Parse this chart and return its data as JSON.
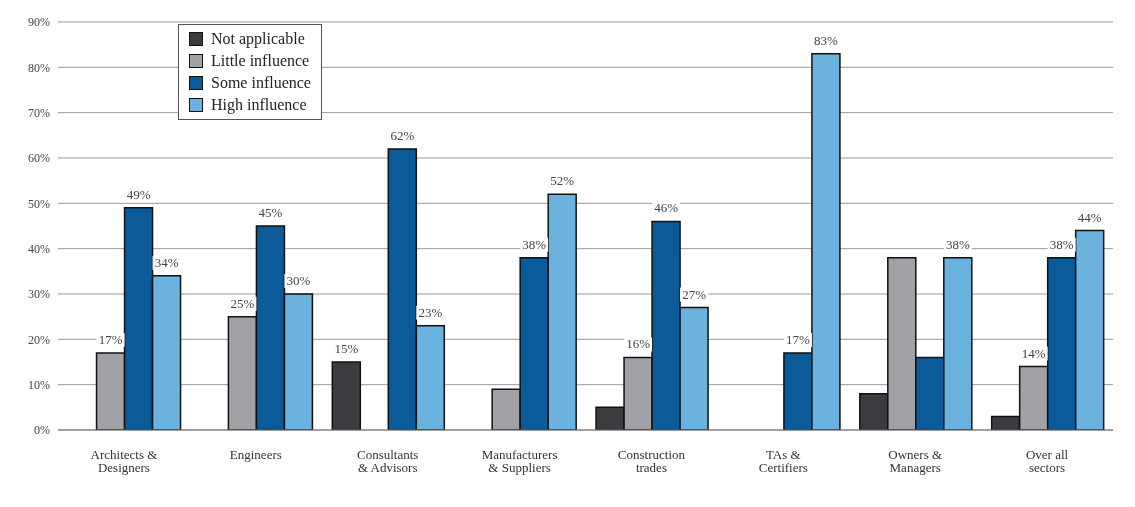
{
  "chart_data": {
    "type": "bar",
    "categories": [
      "Architects & Designers",
      "Engineers",
      "Consultants & Advisors",
      "Manufacturers & Suppliers",
      "Construction trades",
      "TAs & Certifiers",
      "Owners & Managers",
      "Over all sectors"
    ],
    "series": [
      {
        "name": "Not applicable",
        "color": "#3c3c40",
        "values": [
          null,
          null,
          15,
          null,
          5,
          null,
          8,
          3
        ],
        "value_labels": [
          null,
          null,
          "15%",
          null,
          null,
          null,
          null,
          null
        ]
      },
      {
        "name": "Little influence",
        "color": "#a2a2a6",
        "values": [
          17,
          25,
          null,
          9,
          16,
          null,
          38,
          14
        ],
        "value_labels": [
          "17%",
          "25%",
          null,
          null,
          "16%",
          null,
          null,
          "14%"
        ]
      },
      {
        "name": "Some influence",
        "color": "#0b5b9b",
        "values": [
          49,
          45,
          62,
          38,
          46,
          17,
          16,
          38
        ],
        "value_labels": [
          "49%",
          "45%",
          "62%",
          "38%",
          "46%",
          "17%",
          null,
          "38%"
        ]
      },
      {
        "name": "High influence",
        "color": "#6cb2de",
        "values": [
          34,
          30,
          23,
          52,
          27,
          83,
          38,
          44
        ],
        "value_labels": [
          "34%",
          "30%",
          "23%",
          "52%",
          "27%",
          "83%",
          "38%",
          "44%"
        ]
      }
    ],
    "ylim": [
      0,
      90
    ],
    "yticks": [
      {
        "value": 0,
        "label": "0%"
      },
      {
        "value": 10,
        "label": "10%"
      },
      {
        "value": 20,
        "label": "20%"
      },
      {
        "value": 30,
        "label": "30%"
      },
      {
        "value": 40,
        "label": "40%"
      },
      {
        "value": 50,
        "label": "50%"
      },
      {
        "value": 60,
        "label": "60%"
      },
      {
        "value": 70,
        "label": "70%"
      },
      {
        "value": 80,
        "label": "80%"
      },
      {
        "value": 90,
        "label": "90%"
      }
    ],
    "grid": "y",
    "legend": "top left"
  }
}
